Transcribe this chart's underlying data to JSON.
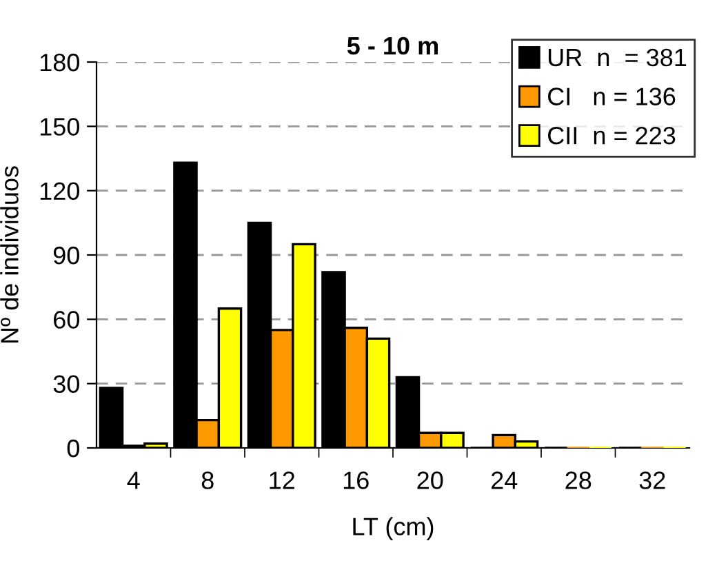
{
  "chart_data": {
    "type": "bar",
    "title": "5 - 10 m",
    "xlabel": "LT (cm)",
    "ylabel": "Nº de individuos",
    "categories": [
      "4",
      "8",
      "12",
      "16",
      "20",
      "24",
      "28",
      "32"
    ],
    "series": [
      {
        "name": "UR  n  = 381",
        "color": "#000000",
        "values": [
          28,
          133,
          105,
          82,
          33,
          0,
          0,
          0
        ]
      },
      {
        "name": "CI   n = 136",
        "color": "#ff9900",
        "values": [
          1,
          13,
          55,
          56,
          7,
          6,
          0,
          0
        ]
      },
      {
        "name": "CII  n = 223",
        "color": "#ffff00",
        "values": [
          2,
          65,
          95,
          51,
          7,
          3,
          0,
          0
        ]
      }
    ],
    "ylim": [
      0,
      180
    ],
    "yticks": [
      0,
      30,
      60,
      90,
      120,
      150,
      180
    ],
    "grid": "y",
    "legend": "top right"
  }
}
